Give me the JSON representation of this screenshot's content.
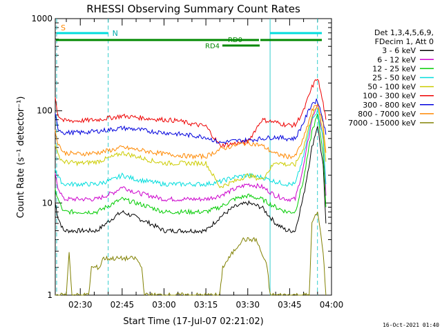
{
  "chart_data": {
    "type": "line",
    "title": "RHESSI Observing Summary Count Rates",
    "xlabel": "Start Time (17-Jul-07 02:21:02)",
    "ylabel": "Count Rate (s⁻¹ detector⁻¹)",
    "y_scale": "log",
    "ylim": [
      1,
      1000
    ],
    "y_ticks": [
      {
        "value": 1,
        "label": "1"
      },
      {
        "value": 10,
        "label": "10"
      },
      {
        "value": 100,
        "label": "100"
      },
      {
        "value": 1000,
        "label": "1000"
      }
    ],
    "xlim": [
      "02:21:02",
      "04:00:00"
    ],
    "x_ticks": [
      "02:30",
      "02:45",
      "03:00",
      "03:15",
      "03:30",
      "03:45",
      "04:00"
    ],
    "legend": {
      "position": "right",
      "header_lines": [
        "Det 1,3,4,5,6,9,",
        "FDecim 1, Att 0"
      ]
    },
    "series": [
      {
        "name": "3 - 6 keV",
        "color": "#000000",
        "x": [
          "02:21",
          "02:22",
          "02:24",
          "02:30",
          "02:36",
          "02:42",
          "02:45",
          "02:50",
          "02:55",
          "03:00",
          "03:05",
          "03:10",
          "03:15",
          "03:20",
          "03:25",
          "03:30",
          "03:35",
          "03:40",
          "03:44",
          "03:47",
          "03:50",
          "03:53",
          "03:55",
          "03:57",
          "03:58"
        ],
        "values": [
          10,
          7,
          5,
          5,
          5,
          7,
          8,
          7,
          6,
          5,
          5,
          5,
          5,
          7,
          9,
          10,
          9,
          6,
          5,
          5,
          12,
          40,
          70,
          25,
          6
        ]
      },
      {
        "name": "6 - 12 keV",
        "color": "#cc00cc",
        "x": [
          "02:21",
          "02:22",
          "02:24",
          "02:30",
          "02:36",
          "02:42",
          "02:45",
          "02:50",
          "02:55",
          "03:00",
          "03:05",
          "03:10",
          "03:15",
          "03:20",
          "03:25",
          "03:30",
          "03:35",
          "03:40",
          "03:44",
          "03:47",
          "03:50",
          "03:53",
          "03:55",
          "03:57",
          "03:58"
        ],
        "values": [
          20,
          15,
          11,
          11,
          11,
          13,
          15,
          13,
          12,
          11,
          11,
          11,
          11,
          12,
          14,
          16,
          15,
          12,
          11,
          11,
          25,
          80,
          120,
          50,
          12
        ]
      },
      {
        "name": "12 - 25 keV",
        "color": "#00cc00",
        "x": [
          "02:21",
          "02:22",
          "02:24",
          "02:30",
          "02:36",
          "02:42",
          "02:45",
          "02:50",
          "02:55",
          "03:00",
          "03:05",
          "03:10",
          "03:15",
          "03:20",
          "03:25",
          "03:30",
          "03:35",
          "03:40",
          "03:44",
          "03:47",
          "03:50",
          "03:53",
          "03:55",
          "03:57",
          "03:58"
        ],
        "values": [
          14,
          11,
          8,
          8,
          8,
          10,
          11,
          10,
          9,
          8,
          8,
          8,
          8,
          9,
          11,
          12,
          11,
          9,
          8,
          8,
          18,
          60,
          90,
          35,
          9
        ]
      },
      {
        "name": "25 - 50 keV",
        "color": "#00dddd",
        "x": [
          "02:21",
          "02:22",
          "02:24",
          "02:30",
          "02:36",
          "02:42",
          "02:45",
          "02:50",
          "02:55",
          "03:00",
          "03:05",
          "03:10",
          "03:15",
          "03:20",
          "03:25",
          "03:30",
          "03:35",
          "03:40",
          "03:44",
          "03:47",
          "03:50",
          "03:53",
          "03:55",
          "03:57",
          "03:58"
        ],
        "values": [
          24,
          19,
          16,
          16,
          16,
          18,
          20,
          18,
          17,
          16,
          16,
          16,
          16,
          17,
          19,
          20,
          19,
          17,
          16,
          16,
          32,
          85,
          100,
          50,
          16
        ]
      },
      {
        "name": "50 - 100 keV",
        "color": "#cccc00",
        "x": [
          "02:21",
          "02:22",
          "02:24",
          "02:30",
          "02:36",
          "02:42",
          "02:45",
          "02:50",
          "02:55",
          "03:00",
          "03:05",
          "03:10",
          "03:15",
          "03:20",
          "03:25",
          "03:30",
          "03:35",
          "03:40",
          "03:44",
          "03:47",
          "03:50",
          "03:53",
          "03:55",
          "03:57",
          "03:58"
        ],
        "values": [
          45,
          33,
          28,
          27,
          28,
          32,
          35,
          32,
          29,
          27,
          27,
          27,
          27,
          15,
          17,
          20,
          18,
          28,
          26,
          26,
          40,
          90,
          110,
          60,
          28
        ]
      },
      {
        "name": "100 - 300 keV",
        "color": "#ee0000",
        "x": [
          "02:21",
          "02:22",
          "02:24",
          "02:30",
          "02:36",
          "02:42",
          "02:45",
          "02:50",
          "02:55",
          "03:00",
          "03:05",
          "03:10",
          "03:15",
          "03:20",
          "03:25",
          "03:30",
          "03:35",
          "03:40",
          "03:44",
          "03:47",
          "03:50",
          "03:53",
          "03:55",
          "03:57",
          "03:58"
        ],
        "values": [
          140,
          90,
          78,
          78,
          80,
          85,
          88,
          85,
          82,
          80,
          78,
          72,
          68,
          42,
          44,
          46,
          80,
          75,
          70,
          70,
          100,
          180,
          230,
          120,
          80
        ]
      },
      {
        "name": "300 - 800 keV",
        "color": "#0000dd",
        "x": [
          "02:21",
          "02:22",
          "02:24",
          "02:30",
          "02:36",
          "02:42",
          "02:45",
          "02:50",
          "02:55",
          "03:00",
          "03:05",
          "03:10",
          "03:15",
          "03:20",
          "03:25",
          "03:30",
          "03:35",
          "03:40",
          "03:44",
          "03:47",
          "03:50",
          "03:53",
          "03:55",
          "03:57",
          "03:58"
        ],
        "values": [
          90,
          65,
          58,
          58,
          60,
          63,
          65,
          63,
          60,
          58,
          56,
          54,
          52,
          45,
          47,
          48,
          50,
          52,
          50,
          50,
          75,
          120,
          130,
          80,
          55
        ]
      },
      {
        "name": "800 - 7000 keV",
        "color": "#ff8800",
        "x": [
          "02:21",
          "02:22",
          "02:24",
          "02:30",
          "02:36",
          "02:42",
          "02:45",
          "02:50",
          "02:55",
          "03:00",
          "03:05",
          "03:10",
          "03:15",
          "03:20",
          "03:25",
          "03:30",
          "03:35",
          "03:40",
          "03:44",
          "03:47",
          "03:50",
          "03:53",
          "03:55",
          "03:57",
          "03:58"
        ],
        "values": [
          60,
          45,
          35,
          34,
          35,
          38,
          40,
          38,
          36,
          34,
          33,
          32,
          32,
          38,
          42,
          45,
          42,
          34,
          32,
          32,
          50,
          100,
          120,
          70,
          35
        ]
      },
      {
        "name": "7000 - 15000 keV",
        "color": "#808000",
        "x": [
          "02:21",
          "02:25",
          "02:26",
          "02:27",
          "02:33",
          "02:34",
          "02:37",
          "02:38",
          "02:45",
          "02:50",
          "02:52",
          "02:53",
          "03:20",
          "03:21",
          "03:25",
          "03:28",
          "03:33",
          "03:37",
          "03:38",
          "03:52",
          "03:53",
          "03:55",
          "03:57",
          "03:58"
        ],
        "values": [
          1,
          1,
          3,
          1,
          1,
          2,
          2,
          2.5,
          2.5,
          2.5,
          2,
          1,
          1,
          2,
          3,
          4,
          4,
          2,
          1,
          1,
          6,
          8,
          3,
          1
        ]
      }
    ],
    "annotations": {
      "saa_label": "S",
      "night_label": "N",
      "rd0_label": "RD0",
      "rd4_label": "RD4"
    }
  },
  "footer": {
    "timestamp": "16-Oct-2021 01:40"
  }
}
